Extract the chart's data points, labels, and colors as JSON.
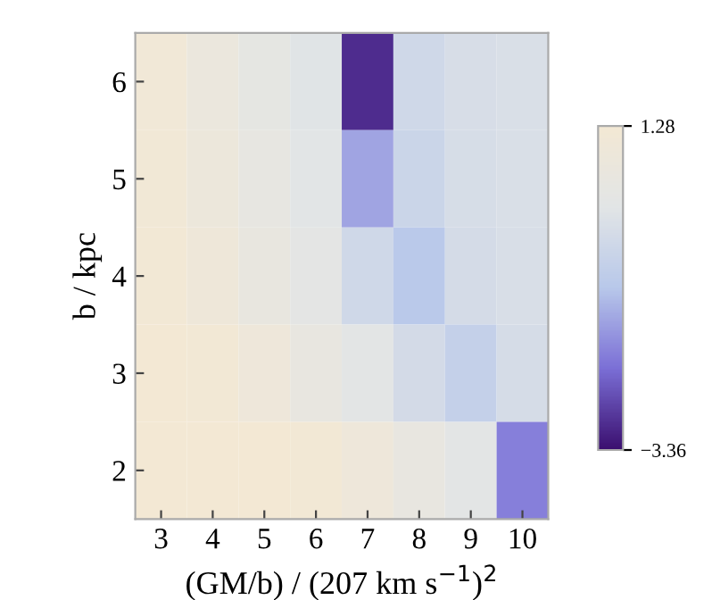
{
  "chart_data": {
    "type": "heatmap",
    "xlabel": "(GM/b) / (207 km s$^{−1}$)$^{2}$",
    "ylabel": "b / kpc",
    "categories": [
      "3",
      "4",
      "5",
      "6",
      "7",
      "8",
      "9",
      "10"
    ],
    "y_categories": [
      "6",
      "5",
      "4",
      "3",
      "2"
    ],
    "cells": [
      [
        1.1,
        0.7,
        0.35,
        0.05,
        -3.0,
        -0.4,
        -0.2,
        -0.15
      ],
      [
        1.15,
        0.8,
        0.45,
        0.15,
        -1.5,
        -0.55,
        -0.22,
        -0.15
      ],
      [
        1.2,
        0.95,
        0.55,
        0.22,
        -0.4,
        -1.0,
        -0.27,
        -0.17
      ],
      [
        1.28,
        1.2,
        0.9,
        0.5,
        0.2,
        -0.3,
        -0.7,
        -0.25
      ],
      [
        1.28,
        1.28,
        1.28,
        1.2,
        0.9,
        0.5,
        0.2,
        -2.0
      ]
    ],
    "colors": [
      "#3b0f6f",
      "#7b6fd6",
      "#b8c8ea",
      "#e2e5e6",
      "#f3e8d4"
    ],
    "clim": [
      -3.36,
      1.28
    ],
    "cticks": [
      -3.36,
      1.28
    ],
    "grid": false
  }
}
